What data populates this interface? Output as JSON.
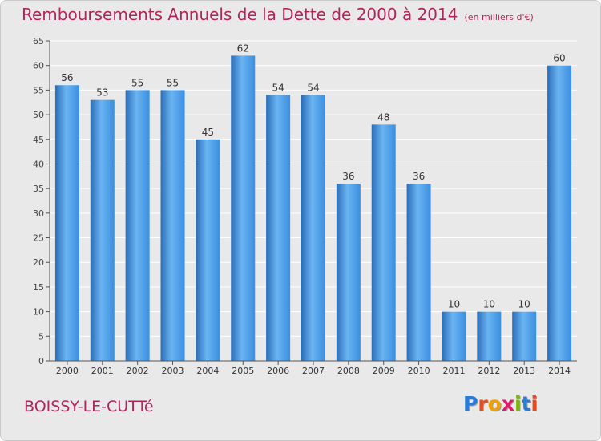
{
  "title": "Remboursements Annuels de la Dette de 2000 à 2014",
  "unit": "(en milliers d'€)",
  "commune": "BOISSY-LE-CUTTé",
  "logo": {
    "letters": [
      "P",
      "r",
      "o",
      "x",
      "i",
      "t",
      "i"
    ],
    "colors": [
      "#2b7bd6",
      "#e84b1a",
      "#f2a000",
      "#e01b6a",
      "#7cb800",
      "#2b7bd6",
      "#e84b1a"
    ]
  },
  "colors": {
    "bar": "#3b8fe0",
    "bar_light": "#6ab4f2",
    "bar_dark": "#2a6db8",
    "title": "#b3245a"
  },
  "chart_data": {
    "type": "bar",
    "title": "Remboursements Annuels de la Dette de 2000 à 2014",
    "xlabel": "",
    "ylabel": "",
    "categories": [
      "2000",
      "2001",
      "2002",
      "2003",
      "2004",
      "2005",
      "2006",
      "2007",
      "2008",
      "2009",
      "2010",
      "2011",
      "2012",
      "2013",
      "2014"
    ],
    "values": [
      56,
      53,
      55,
      55,
      45,
      62,
      54,
      54,
      36,
      48,
      36,
      10,
      10,
      10,
      60
    ],
    "ylim": [
      0,
      65
    ],
    "yticks": [
      0,
      5,
      10,
      15,
      20,
      25,
      30,
      35,
      40,
      45,
      50,
      55,
      60,
      65
    ],
    "grid": true
  }
}
